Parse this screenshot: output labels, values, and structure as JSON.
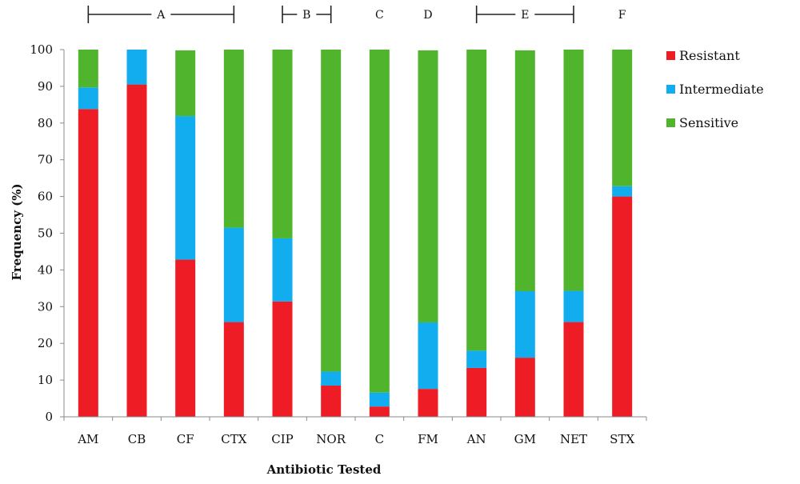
{
  "chart_data": {
    "type": "bar",
    "stacked": true,
    "categories": [
      "AM",
      "CB",
      "CF",
      "CTX",
      "CIP",
      "NOR",
      "C",
      "FM",
      "AN",
      "GM",
      "NET",
      "STX"
    ],
    "series": [
      {
        "name": "Resistant",
        "color": "#ee1c25",
        "values": [
          83.8,
          90.5,
          42.8,
          25.8,
          31.4,
          8.5,
          2.8,
          7.6,
          13.3,
          16.1,
          25.8,
          60.0
        ]
      },
      {
        "name": "Intermediate",
        "color": "#12adef",
        "values": [
          5.9,
          9.5,
          39.1,
          25.7,
          17.2,
          3.8,
          3.8,
          18.1,
          4.7,
          18.1,
          8.5,
          2.8
        ]
      },
      {
        "name": "Sensitive",
        "color": "#50b52c",
        "values": [
          10.3,
          0,
          17.9,
          48.5,
          51.4,
          87.7,
          93.4,
          74.1,
          82.0,
          65.6,
          65.7,
          37.2
        ]
      }
    ],
    "groups": [
      {
        "label": "A",
        "from": 0,
        "to": 3,
        "bracket": true
      },
      {
        "label": "B",
        "from": 4,
        "to": 5,
        "bracket": true
      },
      {
        "label": "C",
        "from": 6,
        "to": 6,
        "bracket": false
      },
      {
        "label": "D",
        "from": 7,
        "to": 7,
        "bracket": false
      },
      {
        "label": "E",
        "from": 8,
        "to": 10,
        "bracket": true
      },
      {
        "label": "F",
        "from": 11,
        "to": 11,
        "bracket": false
      }
    ],
    "xlabel": "Antibiotic Tested",
    "ylabel": "Frequency (%)",
    "ylim": [
      0,
      100
    ],
    "yticks": [
      0,
      10,
      20,
      30,
      40,
      50,
      60,
      70,
      80,
      90,
      100
    ],
    "grid": false,
    "legend_position": "right"
  }
}
